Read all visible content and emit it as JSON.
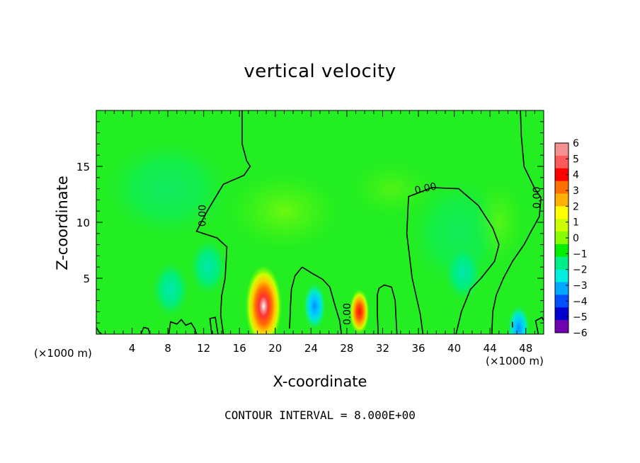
{
  "title": "vertical velocity",
  "footer": "CONTOUR INTERVAL = 8.000E+00",
  "chart_data": {
    "type": "heatmap",
    "title": "vertical velocity",
    "xlabel": "X-coordinate",
    "ylabel": "Z-coordinate",
    "x_unit": "(×1000 m)",
    "xlim": [
      0,
      50
    ],
    "ylim": [
      0,
      20
    ],
    "x_ticks": [
      4,
      8,
      12,
      16,
      20,
      24,
      28,
      32,
      36,
      40,
      44,
      48
    ],
    "y_ticks": [
      5,
      10,
      15
    ],
    "colorbar": {
      "ticks": [
        6,
        5,
        4,
        3,
        2,
        1,
        0,
        -1,
        -2,
        -3,
        -4,
        -5,
        -6
      ],
      "colors": [
        "#f59090",
        "#ff5a5a",
        "#ff0000",
        "#ff7000",
        "#ffb000",
        "#ffff00",
        "#ccff00",
        "#88ff00",
        "#00ee00",
        "#00ee88",
        "#00eedd",
        "#00a8ff",
        "#0050ff",
        "#0000d0",
        "#7000b0"
      ]
    },
    "contour_level_label": "0.00",
    "features": [
      {
        "x": 18.7,
        "z": 2.5,
        "value": 6.0,
        "type": "updraft"
      },
      {
        "x": 29.4,
        "z": 2.0,
        "value": 4.5,
        "type": "updraft"
      },
      {
        "x": 24.4,
        "z": 2.5,
        "value": -3.0,
        "type": "downdraft"
      },
      {
        "x": 8.3,
        "z": 4.0,
        "value": -2.0,
        "type": "downdraft"
      },
      {
        "x": 12.5,
        "z": 6.0,
        "value": -1.5,
        "type": "downdraft"
      },
      {
        "x": 41.0,
        "z": 5.5,
        "value": -1.8,
        "type": "downdraft"
      },
      {
        "x": 47.2,
        "z": 0.5,
        "value": -3.5,
        "type": "downdraft"
      }
    ]
  }
}
